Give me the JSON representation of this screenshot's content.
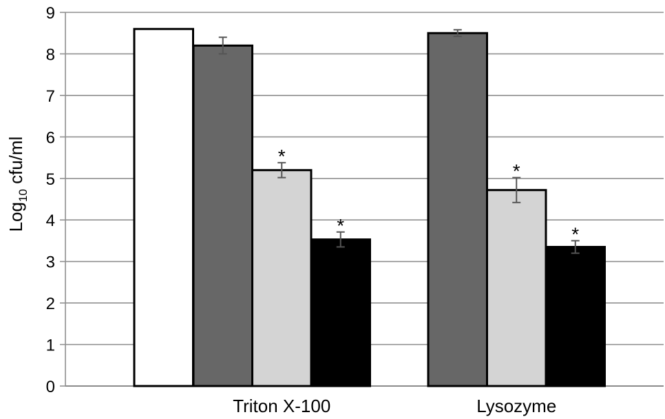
{
  "chart_data": {
    "type": "bar",
    "ylabel": {
      "base": "Log",
      "subscript": "10",
      "rest": " cfu/ml"
    },
    "ylim": [
      0,
      9
    ],
    "yticks": [
      0,
      1,
      2,
      3,
      4,
      5,
      6,
      7,
      8,
      9
    ],
    "grid": true,
    "legend": "none",
    "groups": [
      {
        "label": "",
        "bars": [
          {
            "value": 8.6,
            "error": 0,
            "color": "#ffffff",
            "significant": false
          }
        ]
      },
      {
        "label": "Triton X-100",
        "bars": [
          {
            "value": 8.2,
            "error": 0.2,
            "color": "#676767",
            "significant": false
          },
          {
            "value": 5.2,
            "error": 0.18,
            "color": "#d4d4d4",
            "significant": true
          },
          {
            "value": 3.53,
            "error": 0.18,
            "color": "#000000",
            "significant": true
          }
        ]
      },
      {
        "label": "Lysozyme",
        "bars": [
          {
            "value": 8.5,
            "error": 0.08,
            "color": "#676767",
            "significant": false
          },
          {
            "value": 4.72,
            "error": 0.3,
            "color": "#d4d4d4",
            "significant": true
          },
          {
            "value": 3.35,
            "error": 0.15,
            "color": "#000000",
            "significant": true
          }
        ]
      }
    ],
    "significance_marker": "*"
  }
}
